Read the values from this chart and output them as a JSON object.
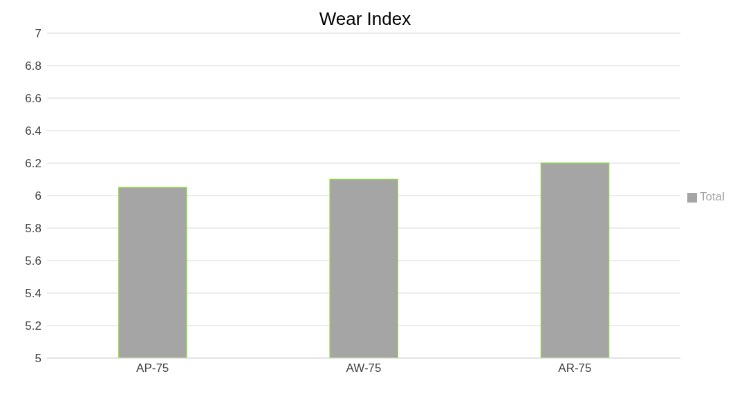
{
  "chart_data": {
    "type": "bar",
    "title": "Wear Index",
    "categories": [
      "AP-75",
      "AW-75",
      "AR-75"
    ],
    "series": [
      {
        "name": "Total",
        "color": "#a5a5a5",
        "values": [
          6.05,
          6.1,
          6.2
        ]
      }
    ],
    "ylim": [
      5,
      7
    ],
    "yticks": [
      5,
      5.2,
      5.4,
      5.6,
      5.8,
      6,
      6.2,
      6.4,
      6.6,
      6.8,
      7
    ],
    "grid": "y",
    "legend": "right"
  }
}
